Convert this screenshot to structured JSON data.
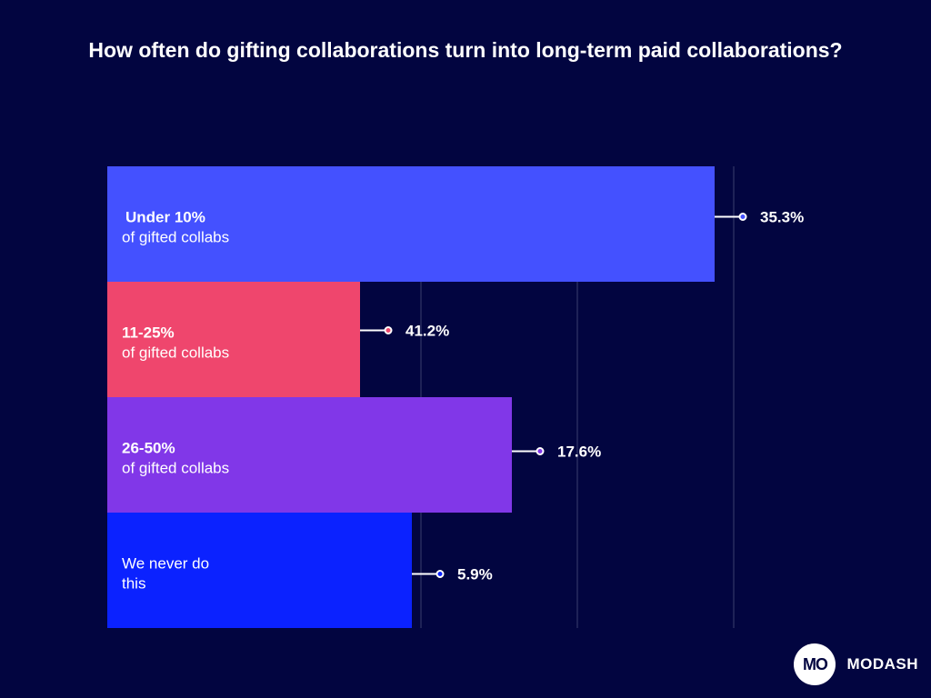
{
  "chart_data": {
    "type": "bar",
    "orientation": "horizontal",
    "title": "How often do gifting collaborations turn into long-term paid collaborations?",
    "categories": [
      {
        "label_title": "Under 10%",
        "label_sub": "of gifted collabs",
        "value": 35.3,
        "value_label": "35.3%",
        "color": "#4451ff"
      },
      {
        "label_title": "11-25%",
        "label_sub": "of gifted collabs",
        "value": 41.2,
        "value_label": "41.2%",
        "color": "#ef466d"
      },
      {
        "label_title": "26-50%",
        "label_sub": "of gifted collabs",
        "value": 17.6,
        "value_label": "17.6%",
        "color": "#8137e8"
      },
      {
        "label_title": "",
        "label_sub": "We never do this",
        "value": 5.9,
        "value_label": "5.9%",
        "color": "#0b22ff"
      }
    ],
    "xlabel": "",
    "ylabel": "",
    "grid": true
  },
  "brand": {
    "logo_text": "MO",
    "name": "MODASH"
  },
  "colors": {
    "background": "#020540",
    "gridline": "#3b3f6e",
    "text": "#ffffff"
  }
}
